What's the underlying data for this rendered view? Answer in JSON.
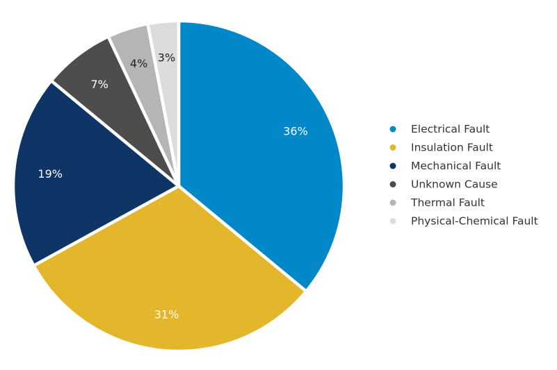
{
  "chart_data": {
    "type": "pie",
    "categories": [
      "Electrical Fault",
      "Insulation Fault",
      "Mechanical Fault",
      "Unknown Cause",
      "Thermal Fault",
      "Physical-Chemical Fault"
    ],
    "values": [
      36,
      31,
      19,
      7,
      4,
      3
    ],
    "labels": [
      "36%",
      "31%",
      "19%",
      "7%",
      "4%",
      "3%"
    ],
    "colors": [
      "#0288c9",
      "#e3b62b",
      "#0e3566",
      "#4d4d4d",
      "#b5b5b5",
      "#dcdcdc"
    ],
    "label_colors": [
      "#ffffff",
      "#ffffff",
      "#ffffff",
      "#ffffff",
      "#222222",
      "#222222"
    ],
    "legend_position": "right",
    "start_angle": "top, clockwise"
  }
}
